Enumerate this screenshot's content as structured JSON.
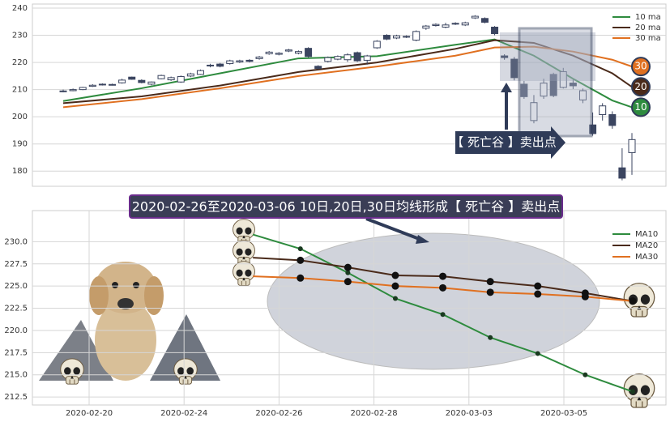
{
  "chart_data": [
    {
      "type": "candlestick",
      "open": [
        209.5,
        209.6,
        210,
        211.2,
        211.8,
        211.7,
        212.5,
        214.6,
        213.4,
        212,
        214,
        213.6,
        212.8,
        215,
        215.6,
        218.8,
        219.4,
        219.6,
        220.2,
        220.8,
        221.4,
        223.2,
        223,
        224.2,
        223.4,
        225.2,
        218.6,
        220.4,
        221.2,
        221,
        223.6,
        220.8,
        225.4,
        230,
        229,
        229.6,
        228.2,
        232.6,
        233.6,
        233,
        234.4,
        233.8,
        236.4,
        236.2,
        233,
        222.4,
        221.2,
        212,
        198.6,
        207.6,
        215.6,
        210.8,
        212.4,
        206.2,
        197,
        200.8,
        200.8,
        181.2,
        186.8
      ],
      "high": [
        210,
        210.4,
        211,
        212,
        212.3,
        212.2,
        214,
        214.8,
        213.8,
        213,
        215.5,
        214.8,
        215.2,
        216.2,
        217.4,
        219.5,
        219.8,
        221,
        221,
        221.2,
        222.4,
        224.2,
        223.8,
        225,
        224.4,
        225.6,
        219,
        222.2,
        222.6,
        223.4,
        224,
        222.8,
        228.2,
        230.4,
        230.2,
        230,
        231.8,
        233.8,
        234.4,
        234.6,
        234.8,
        235,
        237.4,
        236.6,
        233.4,
        223,
        222,
        213.2,
        208,
        214,
        216.2,
        218,
        213.6,
        210.4,
        201.6,
        205,
        202,
        188.4,
        194
      ],
      "low": [
        209,
        209.4,
        209.8,
        211,
        211.5,
        211.5,
        212.2,
        213.6,
        212.3,
        211.6,
        213.8,
        213.2,
        212.5,
        214.6,
        215.4,
        218.2,
        218.2,
        219.2,
        219.8,
        220,
        221,
        222.8,
        222.6,
        223.8,
        223,
        221.8,
        217.4,
        220,
        220.8,
        220.2,
        220.2,
        219.2,
        225,
        228.2,
        228.6,
        229,
        227.8,
        232,
        233.2,
        232.6,
        233.8,
        233.4,
        236,
        234.4,
        230,
        221,
        213.4,
        206.6,
        197.6,
        206.6,
        207.2,
        210.4,
        210.2,
        205,
        193,
        198.6,
        195.6,
        176.6,
        178.6
      ],
      "close": [
        209.5,
        210,
        210.8,
        211.6,
        212,
        211.9,
        213.5,
        213.8,
        212.6,
        212.8,
        215.2,
        214.4,
        214.8,
        215.8,
        217,
        219,
        218.6,
        220.6,
        220.6,
        220.4,
        222,
        223.8,
        223.4,
        224.6,
        224,
        222.2,
        217.8,
        221.8,
        222.2,
        222.8,
        220.6,
        222.4,
        227.8,
        228.6,
        229.8,
        229.4,
        231.4,
        233.4,
        234,
        233.8,
        234.2,
        234.6,
        237,
        234.8,
        230.6,
        221.8,
        214.4,
        207.4,
        205.2,
        212.4,
        207.8,
        216.6,
        211.4,
        209.6,
        193.8,
        204,
        196.8,
        177.4,
        191.6
      ],
      "up_color": "#ffffff",
      "down_color": "#3b4560",
      "series": [
        {
          "name": "10 ma",
          "badge": "10",
          "color": "#2e8b3e",
          "x": [
            0,
            8,
            16,
            24,
            32,
            40,
            44,
            48,
            52,
            56,
            58
          ],
          "values": [
            205.8,
            210.5,
            216,
            221.5,
            222.3,
            226.5,
            228.5,
            222.5,
            214,
            206,
            203.5
          ]
        },
        {
          "name": "20 ma",
          "badge": "20",
          "color": "#4a2a1a",
          "x": [
            0,
            8,
            16,
            24,
            32,
            40,
            44,
            48,
            52,
            56,
            58
          ],
          "values": [
            205,
            207.5,
            211.5,
            216.5,
            220,
            225,
            228.2,
            227.2,
            222.5,
            216,
            211
          ]
        },
        {
          "name": "30 ma",
          "badge": "30",
          "color": "#e07020",
          "x": [
            0,
            8,
            16,
            24,
            32,
            40,
            44,
            48,
            52,
            56,
            58
          ],
          "values": [
            203.5,
            206.5,
            210.5,
            215,
            218.5,
            222.5,
            225.5,
            225.8,
            224,
            221,
            218.5
          ]
        }
      ],
      "ylim": [
        174.4,
        241.5
      ],
      "yticks": [
        180,
        190,
        200,
        210,
        220,
        230,
        240
      ],
      "grid": true,
      "legend": "upper right",
      "annotation": "【 死亡谷 】卖出点"
    },
    {
      "type": "line",
      "title": "2020-02-26至2020-03-06 10日,20日,30日均线形成【 死亡谷 】卖出点",
      "categories": [
        "2020-02-20",
        null,
        "2020-02-24",
        null,
        "2020-02-26",
        null,
        "2020-02-28",
        null,
        "2020-03-03",
        null,
        "2020-03-05",
        null
      ],
      "series": [
        {
          "name": "MA10",
          "color": "#2e8b3e",
          "marker_color": "#1a3a20",
          "values": [
            null,
            null,
            null,
            230.8,
            229.2,
            226.5,
            223.6,
            221.8,
            219.2,
            217.4,
            215,
            213.1
          ]
        },
        {
          "name": "MA20",
          "color": "#4a2a1a",
          "marker_color": "#111111",
          "values": [
            null,
            null,
            null,
            228.2,
            227.9,
            227.1,
            226.2,
            226.1,
            225.5,
            225,
            224.2,
            223.3
          ]
        },
        {
          "name": "MA30",
          "color": "#e07020",
          "marker_color": "#111111",
          "values": [
            null,
            null,
            null,
            226.1,
            225.9,
            225.5,
            225,
            224.8,
            224.3,
            224.1,
            223.8,
            223.3
          ]
        }
      ],
      "ylim": [
        211.6,
        233.5
      ],
      "yticks": [
        212.5,
        {
          "value": 215,
          "label": "215.0"
        },
        217.5,
        {
          "value": 220,
          "label": "220.0"
        },
        222.5,
        {
          "value": 225,
          "label": "225.0"
        },
        227.5,
        {
          "value": 230,
          "label": "230.0"
        }
      ],
      "grid": true,
      "legend": "upper right"
    }
  ]
}
